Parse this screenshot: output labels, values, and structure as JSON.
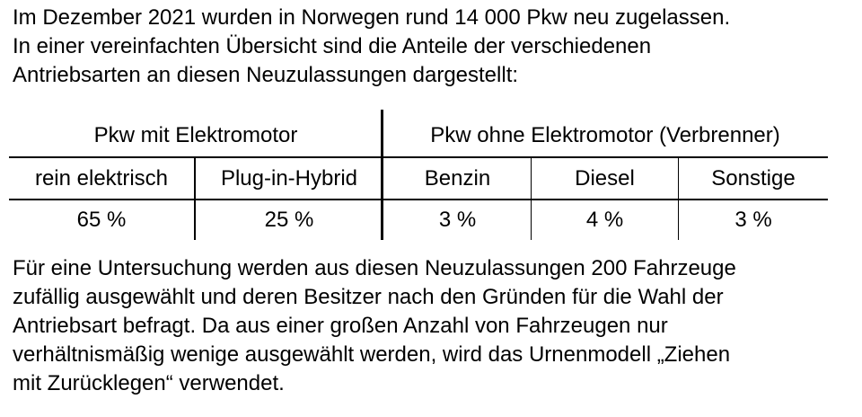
{
  "intro": {
    "lines": [
      "Im Dezember 2021 wurden in Norwegen rund 14 000 Pkw neu zugelassen.",
      "In einer vereinfachten Übersicht sind die Anteile der verschiedenen",
      "Antriebsarten an diesen Neuzulassungen dargestellt:"
    ]
  },
  "table": {
    "groups": [
      "Pkw mit Elektromotor",
      "Pkw ohne Elektromotor (Verbrenner)"
    ],
    "columns": [
      "rein elektrisch",
      "Plug-in-Hybrid",
      "Benzin",
      "Diesel",
      "Sonstige"
    ],
    "values": [
      "65 %",
      "25 %",
      "3 %",
      "4 %",
      "3 %"
    ]
  },
  "outro": {
    "lines": [
      "Für eine Untersuchung werden aus diesen Neuzulassungen 200 Fahrzeuge",
      "zufällig ausgewählt und deren Besitzer nach den Gründen für die Wahl der",
      "Antriebsart befragt. Da aus einer großen Anzahl von Fahrzeugen nur",
      "verhältnismäßig wenige ausgewählt werden, wird das Urnenmodell „Ziehen",
      "mit Zurücklegen“ verwendet."
    ]
  }
}
